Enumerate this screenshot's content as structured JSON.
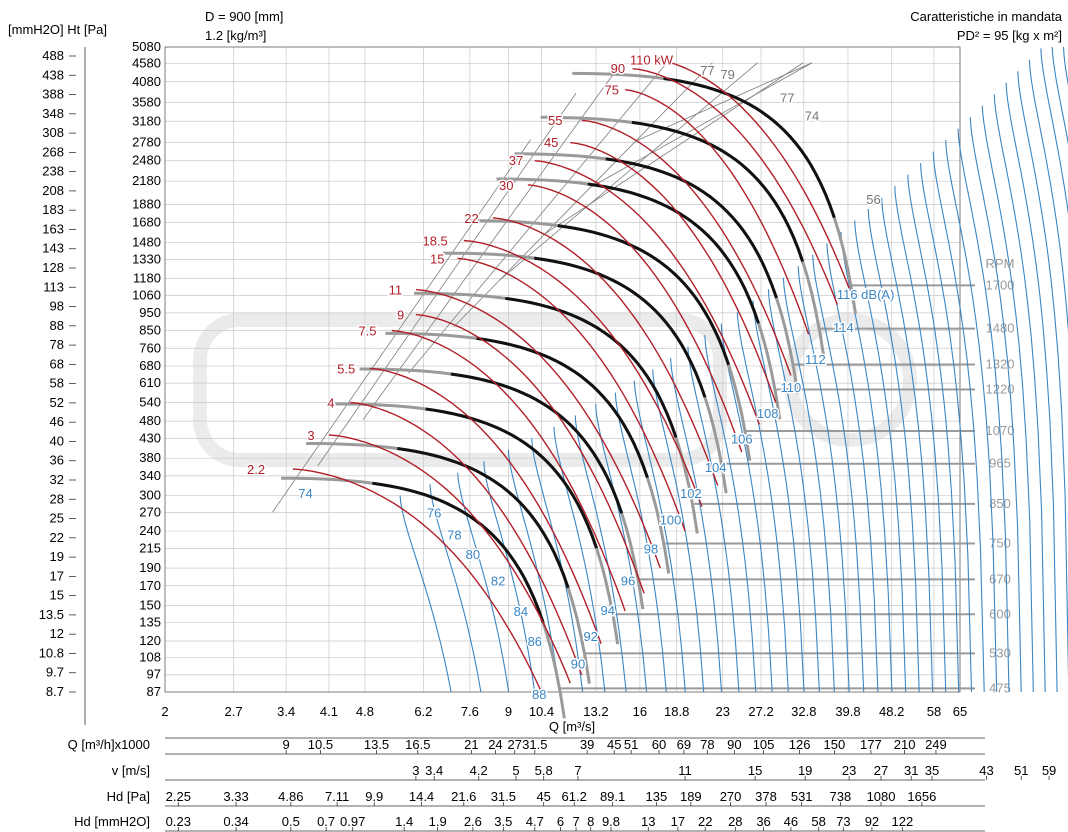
{
  "header": {
    "units_left": "[mmH2O] Ht [Pa]",
    "diameter": "D = 900 [mm]",
    "density": "1.2 [kg/m³]",
    "subtitle": "Caratteristiche in mandata",
    "inertia": "PD² = 95 [kg x m²]"
  },
  "chart_data": {
    "type": "line",
    "x_scale": "log",
    "y_scale": "log",
    "xlabel": "Q [m³/s]",
    "xlim": [
      2,
      65
    ],
    "ylim": [
      87,
      5080
    ],
    "x_ticks": [
      "2",
      "2.7",
      "3.4",
      "4.1",
      "4.8",
      "6.2",
      "7.6",
      "9",
      "10.4",
      "13.2",
      "16",
      "18.8",
      "23",
      "27.2",
      "32.8",
      "39.8",
      "48.2",
      "58",
      "65"
    ],
    "y_ticks_pa": [
      "5080",
      "4580",
      "4080",
      "3580",
      "3180",
      "2780",
      "2480",
      "2180",
      "1880",
      "1680",
      "1480",
      "1330",
      "1180",
      "1060",
      "950",
      "850",
      "760",
      "680",
      "610",
      "540",
      "480",
      "430",
      "380",
      "340",
      "300",
      "270",
      "240",
      "215",
      "190",
      "170",
      "150",
      "135",
      "120",
      "108",
      "97",
      "87"
    ],
    "y_ticks_mm": [
      "488",
      "438",
      "388",
      "348",
      "308",
      "268",
      "238",
      "208",
      "183",
      "163",
      "143",
      "128",
      "113",
      "98",
      "88",
      "78",
      "68",
      "58",
      "52",
      "46",
      "40",
      "36",
      "32",
      "28",
      "25",
      "22",
      "19",
      "17",
      "15",
      "13.5",
      "12",
      "10.8",
      "9.7",
      "8.7"
    ],
    "rpm_label": "RPM",
    "rpm_lines": [
      {
        "rpm": "1700",
        "p_at_q": [
          40.5,
          1130
        ]
      },
      {
        "rpm": "1480",
        "p_at_q": [
          35.3,
          860
        ]
      },
      {
        "rpm": "1320",
        "p_at_q": [
          31.5,
          686
        ]
      },
      {
        "rpm": "1220",
        "p_at_q": [
          29.1,
          586
        ]
      },
      {
        "rpm": "1070",
        "p_at_q": [
          25.5,
          451
        ]
      },
      {
        "rpm": "965",
        "p_at_q": [
          23,
          367
        ]
      },
      {
        "rpm": "850",
        "p_at_q": [
          20.3,
          285
        ]
      },
      {
        "rpm": "750",
        "p_at_q": [
          17.9,
          222
        ]
      },
      {
        "rpm": "670",
        "p_at_q": [
          16,
          177
        ]
      },
      {
        "rpm": "600",
        "p_at_q": [
          14.3,
          142
        ]
      },
      {
        "rpm": "530",
        "p_at_q": [
          12.6,
          111
        ]
      },
      {
        "rpm": "475",
        "p_at_q": [
          11.3,
          89
        ]
      }
    ],
    "db_labels": [
      {
        "text": "116 dB(A)",
        "q": 43,
        "p": 1070
      },
      {
        "text": "114",
        "q": 39,
        "p": 870
      },
      {
        "text": "112",
        "q": 34.5,
        "p": 710
      },
      {
        "text": "110",
        "q": 31,
        "p": 595
      },
      {
        "text": "108",
        "q": 28,
        "p": 505
      },
      {
        "text": "106",
        "q": 25,
        "p": 430
      },
      {
        "text": "104",
        "q": 22.3,
        "p": 360
      },
      {
        "text": "102",
        "q": 20,
        "p": 305
      },
      {
        "text": "100",
        "q": 18.3,
        "p": 258
      },
      {
        "text": "98",
        "q": 16.8,
        "p": 215
      },
      {
        "text": "96",
        "q": 15.2,
        "p": 176
      },
      {
        "text": "94",
        "q": 13.9,
        "p": 146
      },
      {
        "text": "92",
        "q": 12.9,
        "p": 124
      },
      {
        "text": "90",
        "q": 12.2,
        "p": 104
      },
      {
        "text": "88",
        "q": 10.3,
        "p": 86
      },
      {
        "text": "86",
        "q": 10.1,
        "p": 120
      },
      {
        "text": "84",
        "q": 9.5,
        "p": 145
      },
      {
        "text": "82",
        "q": 8.6,
        "p": 176
      },
      {
        "text": "80",
        "q": 7.7,
        "p": 208
      },
      {
        "text": "78",
        "q": 7.1,
        "p": 235
      },
      {
        "text": "76",
        "q": 6.5,
        "p": 270
      },
      {
        "text": "74",
        "q": 3.7,
        "p": 305
      }
    ],
    "db_gray_labels": [
      {
        "text": "77",
        "q": 21.5,
        "p": 4400
      },
      {
        "text": "79",
        "q": 23.5,
        "p": 4280
      },
      {
        "text": "77",
        "q": 30.5,
        "p": 3700
      },
      {
        "text": "74",
        "q": 34,
        "p": 3300
      },
      {
        "text": "56",
        "q": 44.5,
        "p": 1950
      }
    ],
    "power_labels": [
      {
        "text": "110 kW",
        "q": 18.5,
        "p": 4700
      },
      {
        "text": "90",
        "q": 15,
        "p": 4450
      },
      {
        "text": "75",
        "q": 14.6,
        "p": 3880
      },
      {
        "text": "55",
        "q": 11.4,
        "p": 3210
      },
      {
        "text": "45",
        "q": 11.2,
        "p": 2790
      },
      {
        "text": "37",
        "q": 9.6,
        "p": 2490
      },
      {
        "text": "30",
        "q": 9.2,
        "p": 2130
      },
      {
        "text": "22",
        "q": 7.9,
        "p": 1730
      },
      {
        "text": "18.5",
        "q": 6.9,
        "p": 1500
      },
      {
        "text": "15",
        "q": 6.8,
        "p": 1340
      },
      {
        "text": "11",
        "q": 5.65,
        "p": 1100
      },
      {
        "text": "9",
        "q": 5.7,
        "p": 940
      },
      {
        "text": "7.5",
        "q": 5.05,
        "p": 850
      },
      {
        "text": "5.5",
        "q": 4.6,
        "p": 670
      },
      {
        "text": "4",
        "q": 4.2,
        "p": 540
      },
      {
        "text": "3",
        "q": 3.85,
        "p": 440
      },
      {
        "text": "2.2",
        "q": 3.1,
        "p": 355
      }
    ],
    "fan_curves": [
      {
        "rpm": 1700,
        "q0": 17,
        "p0": 4300
      },
      {
        "rpm": 1480,
        "q0": 14.8,
        "p0": 3260
      },
      {
        "rpm": 1320,
        "q0": 13.2,
        "p0": 2590
      },
      {
        "rpm": 1220,
        "q0": 12.2,
        "p0": 2210
      },
      {
        "rpm": 1070,
        "q0": 10.7,
        "p0": 1700
      },
      {
        "rpm": 965,
        "q0": 9.65,
        "p0": 1385
      },
      {
        "rpm": 850,
        "q0": 8.5,
        "p0": 1075
      },
      {
        "rpm": 750,
        "q0": 7.5,
        "p0": 835
      },
      {
        "rpm": 670,
        "q0": 6.7,
        "p0": 667
      },
      {
        "rpm": 600,
        "q0": 6.0,
        "p0": 535
      },
      {
        "rpm": 530,
        "q0": 5.3,
        "p0": 417
      },
      {
        "rpm": 475,
        "q0": 4.75,
        "p0": 335
      }
    ],
    "power_curves": [
      {
        "kw": "110",
        "q": [
          17,
          40
        ],
        "p": [
          4700,
          1110
        ]
      },
      {
        "kw": "90",
        "q": [
          15.5,
          38
        ],
        "p": [
          4430,
          1000
        ]
      },
      {
        "kw": "75",
        "q": [
          15,
          33.5
        ],
        "p": [
          3880,
          830
        ]
      },
      {
        "kw": "55",
        "q": [
          12.4,
          31
        ],
        "p": [
          3200,
          640
        ]
      },
      {
        "kw": "45",
        "q": [
          11.8,
          29
        ],
        "p": [
          2780,
          540
        ]
      },
      {
        "kw": "37",
        "q": [
          10.1,
          27
        ],
        "p": [
          2480,
          470
        ]
      },
      {
        "kw": "30",
        "q": [
          9.8,
          25
        ],
        "p": [
          2130,
          395
        ]
      },
      {
        "kw": "22",
        "q": [
          8.4,
          22.5
        ],
        "p": [
          1730,
          320
        ]
      },
      {
        "kw": "18.5",
        "q": [
          7.4,
          21
        ],
        "p": [
          1500,
          280
        ]
      },
      {
        "kw": "15",
        "q": [
          7.2,
          19.5
        ],
        "p": [
          1340,
          240
        ]
      },
      {
        "kw": "11",
        "q": [
          6,
          17.5
        ],
        "p": [
          1100,
          190
        ]
      },
      {
        "kw": "9",
        "q": [
          6,
          16.3
        ],
        "p": [
          940,
          162
        ]
      },
      {
        "kw": "7.5",
        "q": [
          5.4,
          15
        ],
        "p": [
          850,
          145
        ]
      },
      {
        "kw": "5.5",
        "q": [
          4.9,
          13.5
        ],
        "p": [
          670,
          118
        ]
      },
      {
        "kw": "4",
        "q": [
          4.5,
          12.4
        ],
        "p": [
          540,
          97
        ]
      },
      {
        "kw": "3",
        "q": [
          4.1,
          11.8
        ],
        "p": [
          440,
          92
        ]
      },
      {
        "kw": "2.2",
        "q": [
          3.5,
          10.4
        ],
        "p": [
          355,
          87
        ]
      }
    ]
  },
  "tables": [
    {
      "label": "Q [m³/h]x1000",
      "values": [
        [
          "9",
          3.4
        ],
        [
          "10.5",
          3.95
        ],
        [
          "13.5",
          5.05
        ],
        [
          "16.5",
          6.05
        ],
        [
          "21",
          7.65
        ],
        [
          "24",
          8.5
        ],
        [
          "27",
          9.25
        ],
        [
          "31.5",
          10.1
        ],
        [
          "39",
          12.7
        ],
        [
          "45",
          14.3
        ],
        [
          "51",
          15.4
        ],
        [
          "60",
          17.4
        ],
        [
          "69",
          19.4
        ],
        [
          "78",
          21.5
        ],
        [
          "90",
          24.2
        ],
        [
          "105",
          27.5
        ],
        [
          "126",
          32.2
        ],
        [
          "150",
          37.5
        ],
        [
          "177",
          44
        ],
        [
          "210",
          51
        ],
        [
          "249",
          58.5
        ]
      ]
    },
    {
      "label": "v [m/s]",
      "values": [
        [
          "3",
          6.0
        ],
        [
          "3.4",
          6.5
        ],
        [
          "4.2",
          7.9
        ],
        [
          "5",
          9.3
        ],
        [
          "5.8",
          10.5
        ],
        [
          "7",
          12.2
        ],
        [
          "11",
          19.5
        ],
        [
          "15",
          26.5
        ],
        [
          "19",
          33
        ],
        [
          "23",
          40
        ],
        [
          "27",
          46
        ],
        [
          "31",
          52.5
        ],
        [
          "35",
          57.5
        ],
        [
          "43",
          73
        ],
        [
          "51",
          85
        ],
        [
          "59",
          96
        ]
      ]
    },
    {
      "label": "Hd [Pa]",
      "values": [
        [
          "2.25",
          2.12
        ],
        [
          "3.33",
          2.73
        ],
        [
          "4.86",
          3.47
        ],
        [
          "7.11",
          4.25
        ],
        [
          "9.9",
          5.0
        ],
        [
          "14.4",
          6.15
        ],
        [
          "21.6",
          7.4
        ],
        [
          "31.5",
          8.8
        ],
        [
          "45",
          10.5
        ],
        [
          "61.2",
          12.0
        ],
        [
          "89.1",
          14.2
        ],
        [
          "135",
          17.2
        ],
        [
          "189",
          20.0
        ],
        [
          "270",
          23.8
        ],
        [
          "378",
          27.8
        ],
        [
          "531",
          32.5
        ],
        [
          "738",
          38.5
        ],
        [
          "1080",
          46
        ],
        [
          "1656",
          55
        ]
      ]
    },
    {
      "label": "Hd [mmH2O]",
      "values": [
        [
          "0.23",
          2.12
        ],
        [
          "0.34",
          2.73
        ],
        [
          "0.5",
          3.47
        ],
        [
          "0.7",
          4.05
        ],
        [
          "0.97",
          4.55
        ],
        [
          "1.4",
          5.7
        ],
        [
          "1.9",
          6.6
        ],
        [
          "2.6",
          7.7
        ],
        [
          "3.5",
          8.8
        ],
        [
          "4.7",
          10.1
        ],
        [
          "6",
          11.3
        ],
        [
          "7",
          12.1
        ],
        [
          "8",
          12.9
        ],
        [
          "9.8",
          14.1
        ],
        [
          "13",
          16.6
        ],
        [
          "17",
          18.9
        ],
        [
          "22",
          21.3
        ],
        [
          "28",
          24.3
        ],
        [
          "36",
          27.5
        ],
        [
          "46",
          31.0
        ],
        [
          "58",
          35.0
        ],
        [
          "73",
          39.0
        ],
        [
          "92",
          44.2
        ],
        [
          "122",
          50.5
        ]
      ]
    }
  ],
  "colors": {
    "red": "#b1202a",
    "blue": "#3b86c4",
    "gray": "#9a9a9a",
    "black": "#111111",
    "grid": "#c8c8c8"
  }
}
